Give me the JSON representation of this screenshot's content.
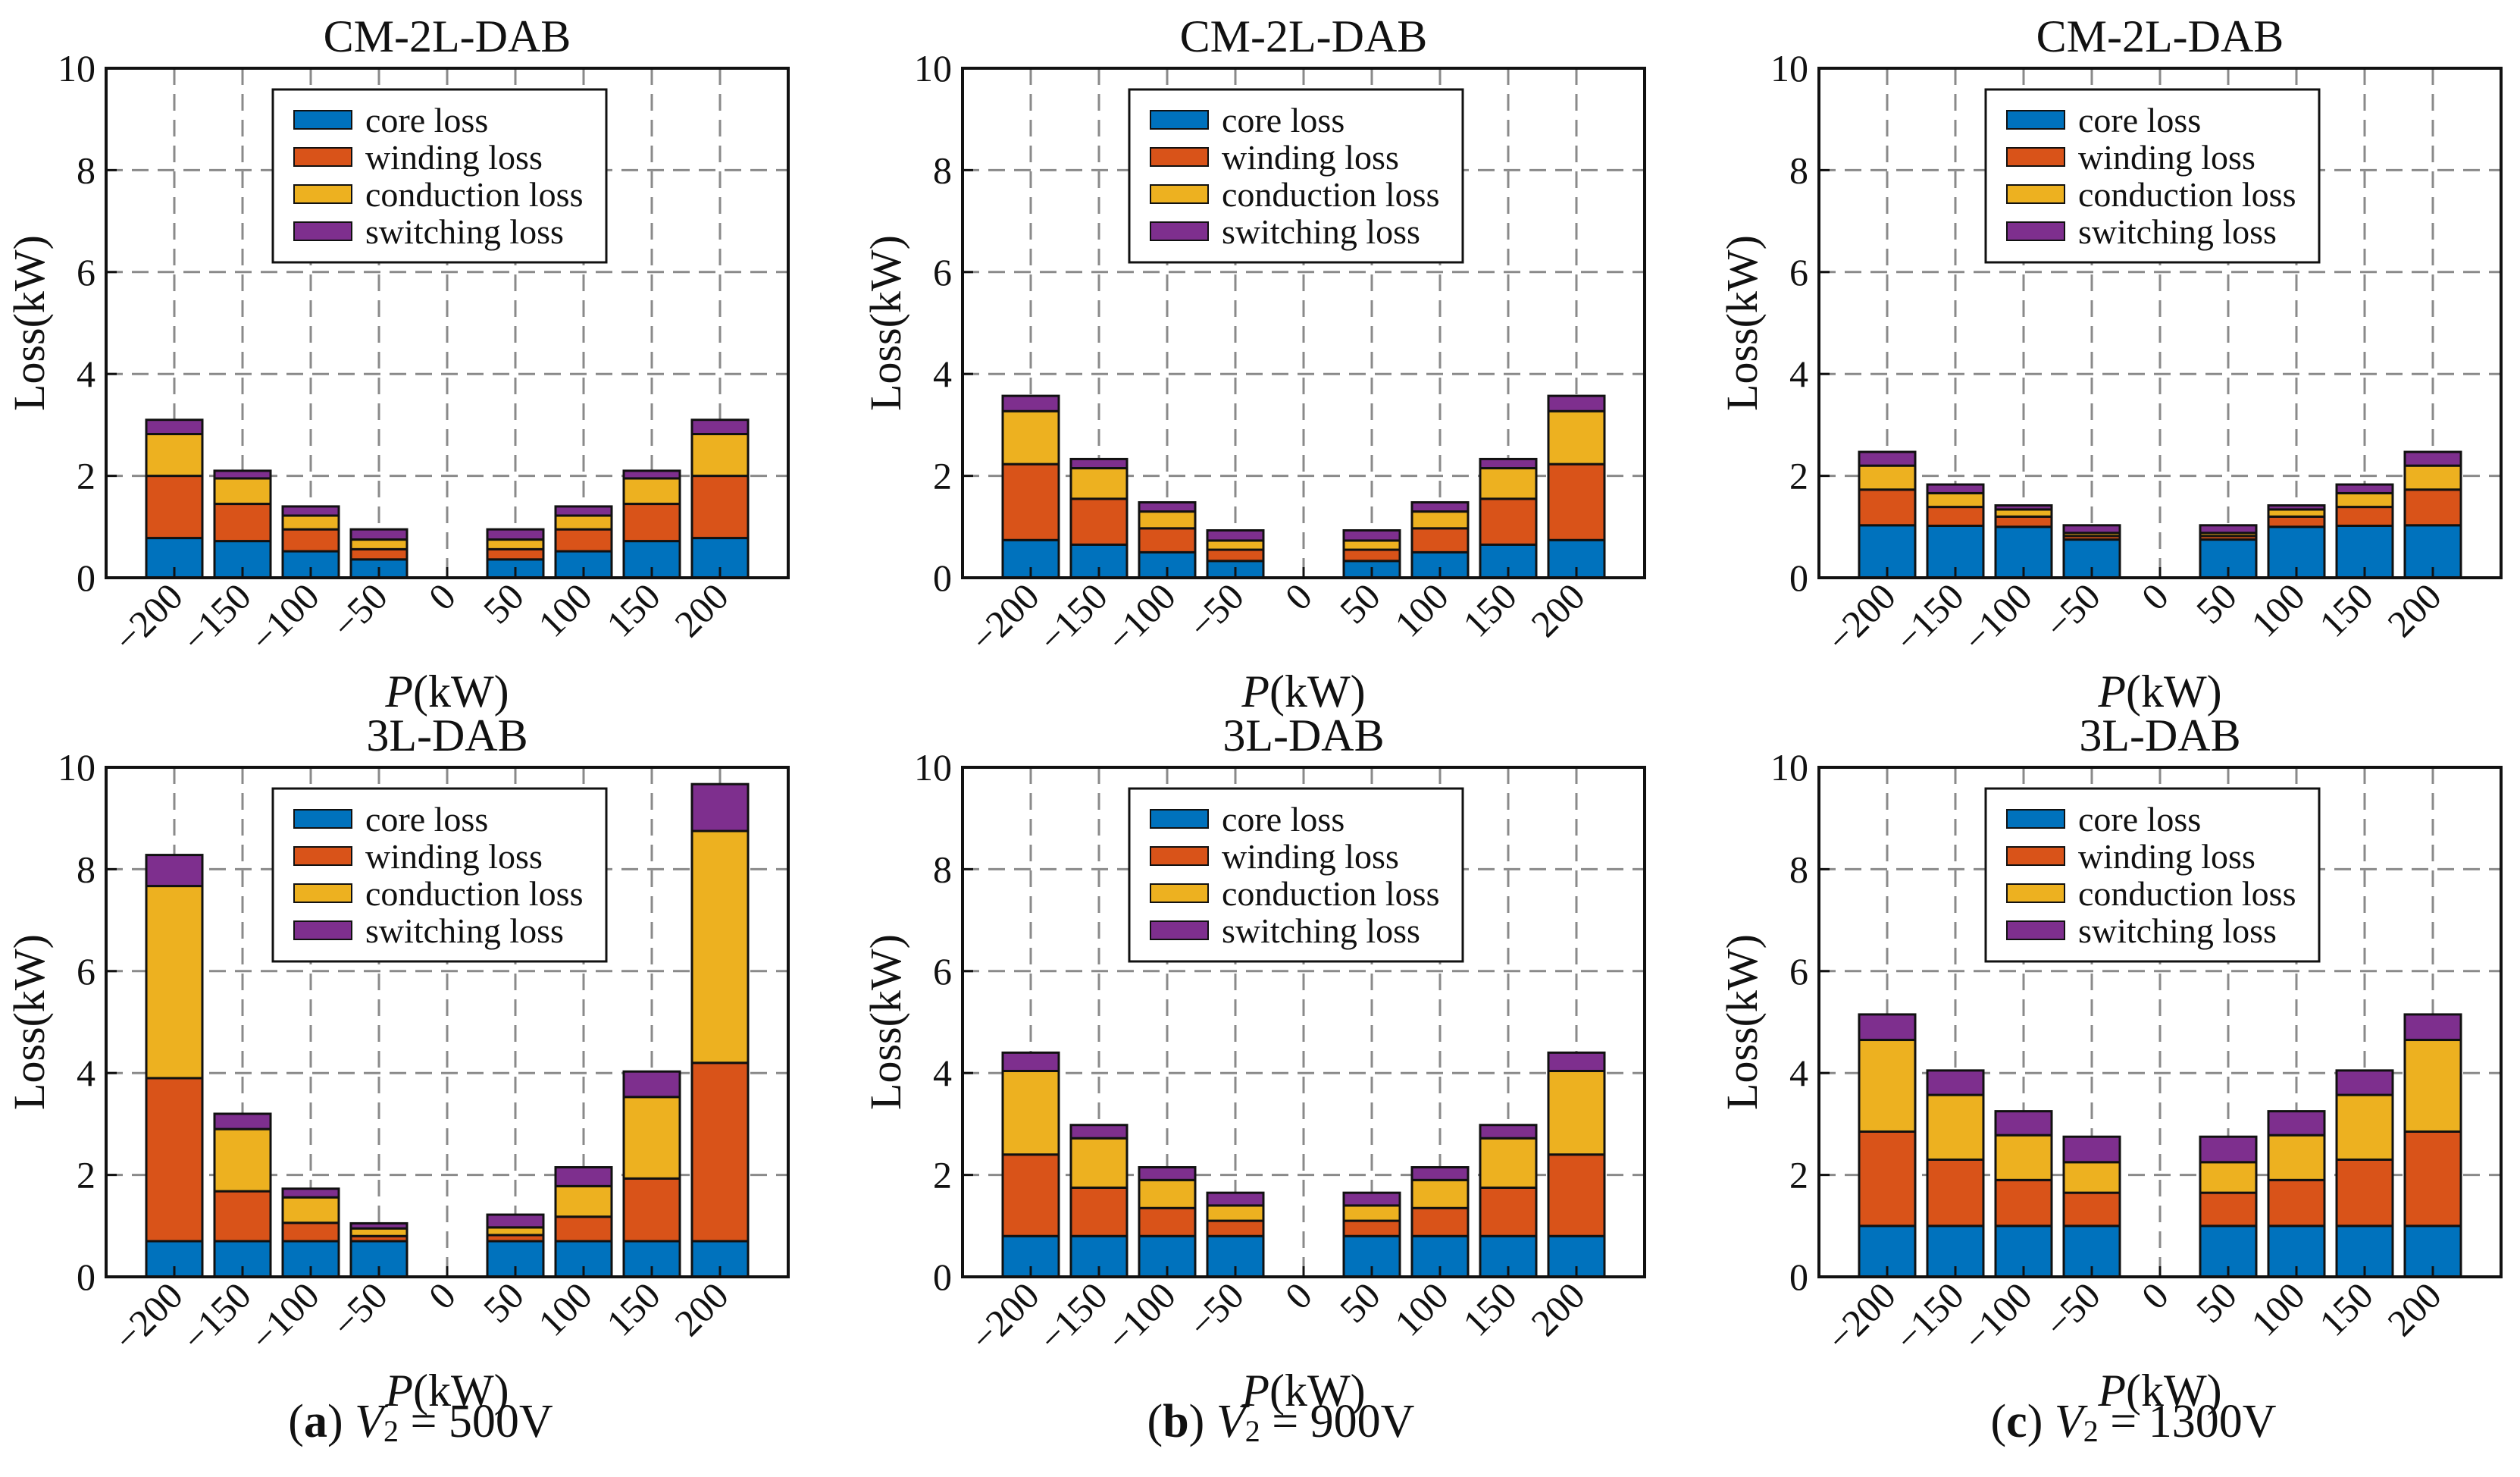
{
  "series_names": [
    "core loss",
    "winding loss",
    "conduction loss",
    "switching loss"
  ],
  "colors": [
    "#0072BD",
    "#D95319",
    "#EDB120",
    "#7E2F8E"
  ],
  "columns": [
    {
      "label": "a",
      "symbol": "V",
      "subscript": "2",
      "value_text": "= 500V"
    },
    {
      "label": "b",
      "symbol": "V",
      "subscript": "2",
      "value_text": "= 900V"
    },
    {
      "label": "c",
      "symbol": "V",
      "subscript": "2",
      "value_text": "= 1300V"
    }
  ],
  "chart_data": [
    {
      "type": "bar",
      "stacked": true,
      "title": "CM-2L-DAB",
      "xlabel_symbol": "P",
      "xlabel_unit": "(kW)",
      "ylabel": "Loss(kW)",
      "ylim": [
        0,
        10
      ],
      "yticks": [
        0,
        2,
        4,
        6,
        8,
        10
      ],
      "grid": true,
      "legend": "top-center",
      "categories": [
        "−200",
        "−150",
        "−100",
        "−50",
        "0",
        "50",
        "100",
        "150",
        "200"
      ],
      "series": [
        {
          "name": "core loss",
          "values": [
            0.78,
            0.72,
            0.52,
            0.36,
            0,
            0.36,
            0.52,
            0.72,
            0.78
          ]
        },
        {
          "name": "winding loss",
          "values": [
            1.22,
            0.73,
            0.43,
            0.2,
            0,
            0.2,
            0.43,
            0.73,
            1.22
          ]
        },
        {
          "name": "conduction loss",
          "values": [
            0.82,
            0.5,
            0.27,
            0.19,
            0,
            0.19,
            0.27,
            0.5,
            0.82
          ]
        },
        {
          "name": "switching loss",
          "values": [
            0.28,
            0.15,
            0.18,
            0.2,
            0,
            0.2,
            0.18,
            0.15,
            0.28
          ]
        }
      ]
    },
    {
      "type": "bar",
      "stacked": true,
      "title": "CM-2L-DAB",
      "xlabel_symbol": "P",
      "xlabel_unit": "(kW)",
      "ylabel": "Loss(kW)",
      "ylim": [
        0,
        10
      ],
      "yticks": [
        0,
        2,
        4,
        6,
        8,
        10
      ],
      "grid": true,
      "legend": "top-center",
      "categories": [
        "−200",
        "−150",
        "−100",
        "−50",
        "0",
        "50",
        "100",
        "150",
        "200"
      ],
      "series": [
        {
          "name": "core loss",
          "values": [
            0.74,
            0.65,
            0.5,
            0.33,
            0,
            0.33,
            0.5,
            0.65,
            0.74
          ]
        },
        {
          "name": "winding loss",
          "values": [
            1.49,
            0.9,
            0.47,
            0.22,
            0,
            0.22,
            0.47,
            0.9,
            1.49
          ]
        },
        {
          "name": "conduction loss",
          "values": [
            1.04,
            0.6,
            0.33,
            0.18,
            0,
            0.18,
            0.33,
            0.6,
            1.04
          ]
        },
        {
          "name": "switching loss",
          "values": [
            0.3,
            0.18,
            0.18,
            0.2,
            0,
            0.2,
            0.18,
            0.18,
            0.3
          ]
        }
      ]
    },
    {
      "type": "bar",
      "stacked": true,
      "title": "CM-2L-DAB",
      "xlabel_symbol": "P",
      "xlabel_unit": "(kW)",
      "ylabel": "Loss(kW)",
      "ylim": [
        0,
        10
      ],
      "yticks": [
        0,
        2,
        4,
        6,
        8,
        10
      ],
      "grid": true,
      "legend": "top-center",
      "categories": [
        "−200",
        "−150",
        "−100",
        "−50",
        "0",
        "50",
        "100",
        "150",
        "200"
      ],
      "series": [
        {
          "name": "core loss",
          "values": [
            1.03,
            1.02,
            1.0,
            0.75,
            0,
            0.75,
            1.0,
            1.02,
            1.03
          ]
        },
        {
          "name": "winding loss",
          "values": [
            0.7,
            0.37,
            0.2,
            0.07,
            0,
            0.07,
            0.2,
            0.37,
            0.7
          ]
        },
        {
          "name": "conduction loss",
          "values": [
            0.47,
            0.27,
            0.14,
            0.06,
            0,
            0.06,
            0.14,
            0.27,
            0.47
          ]
        },
        {
          "name": "switching loss",
          "values": [
            0.27,
            0.17,
            0.08,
            0.15,
            0,
            0.15,
            0.08,
            0.17,
            0.27
          ]
        }
      ]
    },
    {
      "type": "bar",
      "stacked": true,
      "title": "3L-DAB",
      "xlabel_symbol": "P",
      "xlabel_unit": "(kW)",
      "ylabel": "Loss(kW)",
      "ylim": [
        0,
        10
      ],
      "yticks": [
        0,
        2,
        4,
        6,
        8,
        10
      ],
      "grid": true,
      "legend": "top-center",
      "categories": [
        "−200",
        "−150",
        "−100",
        "−50",
        "0",
        "50",
        "100",
        "150",
        "200"
      ],
      "series": [
        {
          "name": "core loss",
          "values": [
            0.7,
            0.7,
            0.7,
            0.7,
            0,
            0.7,
            0.7,
            0.7,
            0.7
          ]
        },
        {
          "name": "winding loss",
          "values": [
            3.2,
            0.98,
            0.36,
            0.1,
            0,
            0.12,
            0.48,
            1.23,
            3.5
          ]
        },
        {
          "name": "conduction loss",
          "values": [
            3.77,
            1.22,
            0.5,
            0.15,
            0,
            0.15,
            0.6,
            1.6,
            4.55
          ]
        },
        {
          "name": "switching loss",
          "values": [
            0.61,
            0.3,
            0.17,
            0.1,
            0,
            0.25,
            0.37,
            0.5,
            0.92
          ]
        }
      ]
    },
    {
      "type": "bar",
      "stacked": true,
      "title": "3L-DAB",
      "xlabel_symbol": "P",
      "xlabel_unit": "(kW)",
      "ylabel": "Loss(kW)",
      "ylim": [
        0,
        10
      ],
      "yticks": [
        0,
        2,
        4,
        6,
        8,
        10
      ],
      "grid": true,
      "legend": "top-center",
      "categories": [
        "−200",
        "−150",
        "−100",
        "−50",
        "0",
        "50",
        "100",
        "150",
        "200"
      ],
      "series": [
        {
          "name": "core loss",
          "values": [
            0.8,
            0.8,
            0.8,
            0.8,
            0,
            0.8,
            0.8,
            0.8,
            0.8
          ]
        },
        {
          "name": "winding loss",
          "values": [
            1.6,
            0.95,
            0.55,
            0.3,
            0,
            0.3,
            0.55,
            0.95,
            1.6
          ]
        },
        {
          "name": "conduction loss",
          "values": [
            1.64,
            0.97,
            0.55,
            0.3,
            0,
            0.3,
            0.55,
            0.97,
            1.64
          ]
        },
        {
          "name": "switching loss",
          "values": [
            0.36,
            0.26,
            0.25,
            0.25,
            0,
            0.25,
            0.25,
            0.26,
            0.36
          ]
        }
      ]
    },
    {
      "type": "bar",
      "stacked": true,
      "title": "3L-DAB",
      "xlabel_symbol": "P",
      "xlabel_unit": "(kW)",
      "ylabel": "Loss(kW)",
      "ylim": [
        0,
        10
      ],
      "yticks": [
        0,
        2,
        4,
        6,
        8,
        10
      ],
      "grid": true,
      "legend": "top-center",
      "categories": [
        "−200",
        "−150",
        "−100",
        "−50",
        "0",
        "50",
        "100",
        "150",
        "200"
      ],
      "series": [
        {
          "name": "core loss",
          "values": [
            1.0,
            1.0,
            1.0,
            1.0,
            0,
            1.0,
            1.0,
            1.0,
            1.0
          ]
        },
        {
          "name": "winding loss",
          "values": [
            1.85,
            1.3,
            0.9,
            0.65,
            0,
            0.65,
            0.9,
            1.3,
            1.85
          ]
        },
        {
          "name": "conduction loss",
          "values": [
            1.8,
            1.27,
            0.88,
            0.6,
            0,
            0.6,
            0.88,
            1.27,
            1.8
          ]
        },
        {
          "name": "switching loss",
          "values": [
            0.5,
            0.48,
            0.47,
            0.5,
            0,
            0.5,
            0.47,
            0.48,
            0.5
          ]
        }
      ]
    }
  ]
}
